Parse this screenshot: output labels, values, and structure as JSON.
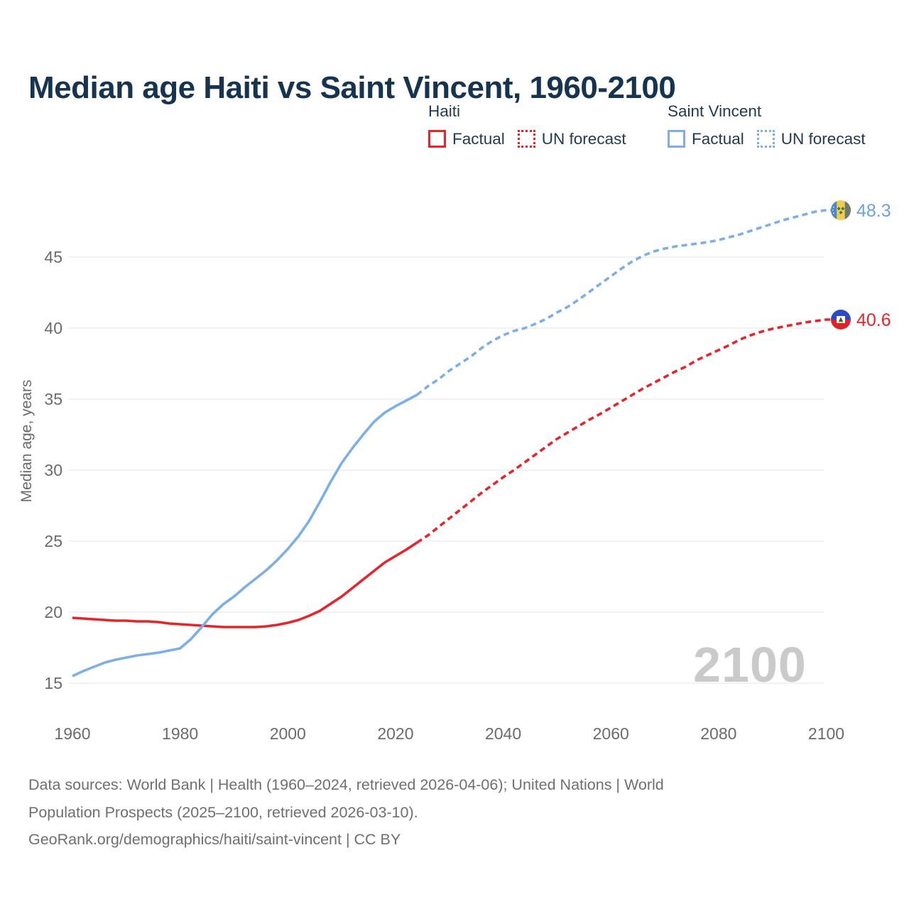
{
  "header": {
    "title": "Median age Haiti vs Saint Vincent, 1960-2100"
  },
  "legend": {
    "groups": [
      {
        "title": "Haiti",
        "color": "#e8232a",
        "items": [
          {
            "label": "Factual",
            "style": "solid"
          },
          {
            "label": "UN forecast",
            "style": "dotted"
          }
        ]
      },
      {
        "title": "Saint Vincent",
        "color": "#7cafe6",
        "items": [
          {
            "label": "Factual",
            "style": "solid"
          },
          {
            "label": "UN forecast",
            "style": "dotted"
          }
        ]
      }
    ]
  },
  "colors": {
    "haiti_line": "#e8232a",
    "saint_vincent_line": "#7cafe6",
    "title_text": "#16334f",
    "legend_text": "#223a52",
    "axis_text": "#6b6b6b",
    "gridline": "#ebebeb",
    "watermark_text": "#cacaca",
    "haiti_value_text": "#e8232a",
    "saint_vincent_value_text": "#6aa2e4",
    "footer_text": "#6f6f6f"
  },
  "chart_data": {
    "type": "line",
    "title": "Median age Haiti vs Saint Vincent, 1960-2100",
    "xlabel": "",
    "ylabel": "Median age, years",
    "yticks": [
      15,
      20,
      25,
      30,
      35,
      40,
      45
    ],
    "xticks": [
      1960,
      1980,
      2000,
      2020,
      2040,
      2060,
      2080,
      2100
    ],
    "ylim": [
      13.5,
      49.5
    ],
    "xlim": [
      1955,
      2112
    ],
    "grid": "horizontal",
    "legend_position": "top-right",
    "watermark": "2100",
    "series": [
      {
        "name": "Haiti — Factual",
        "country": "Haiti",
        "segment": "Factual",
        "line_style": "solid",
        "color": "#e8232a",
        "points": [
          [
            1960,
            19.6
          ],
          [
            1962,
            19.55
          ],
          [
            1964,
            19.5
          ],
          [
            1966,
            19.45
          ],
          [
            1968,
            19.4
          ],
          [
            1970,
            19.4
          ],
          [
            1972,
            19.35
          ],
          [
            1974,
            19.35
          ],
          [
            1976,
            19.3
          ],
          [
            1978,
            19.2
          ],
          [
            1980,
            19.15
          ],
          [
            1982,
            19.1
          ],
          [
            1984,
            19.05
          ],
          [
            1986,
            19.0
          ],
          [
            1988,
            18.95
          ],
          [
            1990,
            18.95
          ],
          [
            1992,
            18.95
          ],
          [
            1994,
            18.95
          ],
          [
            1996,
            19.0
          ],
          [
            1998,
            19.1
          ],
          [
            2000,
            19.25
          ],
          [
            2002,
            19.45
          ],
          [
            2004,
            19.75
          ],
          [
            2006,
            20.1
          ],
          [
            2008,
            20.6
          ],
          [
            2010,
            21.1
          ],
          [
            2012,
            21.7
          ],
          [
            2014,
            22.3
          ],
          [
            2016,
            22.9
          ],
          [
            2018,
            23.5
          ],
          [
            2020,
            23.95
          ],
          [
            2022,
            24.4
          ],
          [
            2024,
            24.9
          ]
        ]
      },
      {
        "name": "Haiti — UN forecast",
        "country": "Haiti",
        "segment": "UN forecast",
        "line_style": "dashed",
        "color": "#e8232a",
        "points": [
          [
            2024,
            24.9
          ],
          [
            2026,
            25.4
          ],
          [
            2028,
            26.0
          ],
          [
            2030,
            26.6
          ],
          [
            2032,
            27.2
          ],
          [
            2034,
            27.8
          ],
          [
            2036,
            28.4
          ],
          [
            2038,
            28.95
          ],
          [
            2040,
            29.5
          ],
          [
            2042,
            30.0
          ],
          [
            2044,
            30.55
          ],
          [
            2046,
            31.1
          ],
          [
            2048,
            31.65
          ],
          [
            2050,
            32.2
          ],
          [
            2052,
            32.65
          ],
          [
            2054,
            33.1
          ],
          [
            2056,
            33.55
          ],
          [
            2058,
            33.95
          ],
          [
            2060,
            34.4
          ],
          [
            2062,
            34.85
          ],
          [
            2064,
            35.3
          ],
          [
            2066,
            35.75
          ],
          [
            2068,
            36.15
          ],
          [
            2070,
            36.55
          ],
          [
            2072,
            36.95
          ],
          [
            2074,
            37.3
          ],
          [
            2076,
            37.75
          ],
          [
            2078,
            38.1
          ],
          [
            2080,
            38.45
          ],
          [
            2082,
            38.8
          ],
          [
            2084,
            39.2
          ],
          [
            2086,
            39.5
          ],
          [
            2088,
            39.75
          ],
          [
            2090,
            39.95
          ],
          [
            2092,
            40.1
          ],
          [
            2094,
            40.25
          ],
          [
            2096,
            40.4
          ],
          [
            2098,
            40.5
          ],
          [
            2100,
            40.6
          ]
        ]
      },
      {
        "name": "Saint Vincent — Factual",
        "country": "Saint Vincent",
        "segment": "Factual",
        "line_style": "solid",
        "color": "#7cafe6",
        "points": [
          [
            1960,
            15.5
          ],
          [
            1962,
            15.85
          ],
          [
            1964,
            16.15
          ],
          [
            1966,
            16.45
          ],
          [
            1968,
            16.65
          ],
          [
            1970,
            16.8
          ],
          [
            1972,
            16.95
          ],
          [
            1974,
            17.05
          ],
          [
            1976,
            17.15
          ],
          [
            1978,
            17.3
          ],
          [
            1980,
            17.45
          ],
          [
            1982,
            18.1
          ],
          [
            1984,
            18.95
          ],
          [
            1986,
            19.85
          ],
          [
            1988,
            20.55
          ],
          [
            1990,
            21.1
          ],
          [
            1992,
            21.75
          ],
          [
            1994,
            22.35
          ],
          [
            1996,
            22.95
          ],
          [
            1998,
            23.65
          ],
          [
            2000,
            24.45
          ],
          [
            2002,
            25.35
          ],
          [
            2004,
            26.45
          ],
          [
            2006,
            27.8
          ],
          [
            2008,
            29.2
          ],
          [
            2010,
            30.5
          ],
          [
            2012,
            31.55
          ],
          [
            2014,
            32.5
          ],
          [
            2016,
            33.4
          ],
          [
            2018,
            34.05
          ],
          [
            2020,
            34.5
          ],
          [
            2022,
            34.9
          ],
          [
            2024,
            35.3
          ]
        ]
      },
      {
        "name": "Saint Vincent — UN forecast",
        "country": "Saint Vincent",
        "segment": "UN forecast",
        "line_style": "dashed",
        "color": "#7cafe6",
        "points": [
          [
            2024,
            35.3
          ],
          [
            2026,
            35.9
          ],
          [
            2028,
            36.4
          ],
          [
            2030,
            37.0
          ],
          [
            2032,
            37.5
          ],
          [
            2034,
            38.0
          ],
          [
            2036,
            38.6
          ],
          [
            2038,
            39.1
          ],
          [
            2040,
            39.5
          ],
          [
            2042,
            39.8
          ],
          [
            2044,
            40.0
          ],
          [
            2046,
            40.3
          ],
          [
            2048,
            40.65
          ],
          [
            2050,
            41.1
          ],
          [
            2052,
            41.5
          ],
          [
            2054,
            42.0
          ],
          [
            2056,
            42.55
          ],
          [
            2058,
            43.1
          ],
          [
            2060,
            43.65
          ],
          [
            2062,
            44.2
          ],
          [
            2064,
            44.7
          ],
          [
            2066,
            45.1
          ],
          [
            2068,
            45.4
          ],
          [
            2070,
            45.6
          ],
          [
            2072,
            45.75
          ],
          [
            2074,
            45.85
          ],
          [
            2076,
            45.95
          ],
          [
            2078,
            46.05
          ],
          [
            2080,
            46.2
          ],
          [
            2082,
            46.4
          ],
          [
            2084,
            46.6
          ],
          [
            2086,
            46.85
          ],
          [
            2088,
            47.1
          ],
          [
            2090,
            47.35
          ],
          [
            2092,
            47.6
          ],
          [
            2094,
            47.8
          ],
          [
            2096,
            48.0
          ],
          [
            2098,
            48.2
          ],
          [
            2100,
            48.3
          ]
        ]
      }
    ],
    "end_labels": [
      {
        "country": "Saint Vincent",
        "value": "48.3",
        "y_value": 48.3,
        "flag": "saint-vincent-flag",
        "color": "#6aa2e4"
      },
      {
        "country": "Haiti",
        "value": "40.6",
        "y_value": 40.6,
        "flag": "haiti-flag",
        "color": "#e8232a"
      }
    ]
  },
  "footer": {
    "lines": [
      "Data sources: World Bank | Health (1960–2024, retrieved 2026-04-06); United Nations | World",
      "Population Prospects (2025–2100, retrieved 2026-03-10).",
      "GeoRank.org/demographics/haiti/saint-vincent | CC BY"
    ]
  }
}
